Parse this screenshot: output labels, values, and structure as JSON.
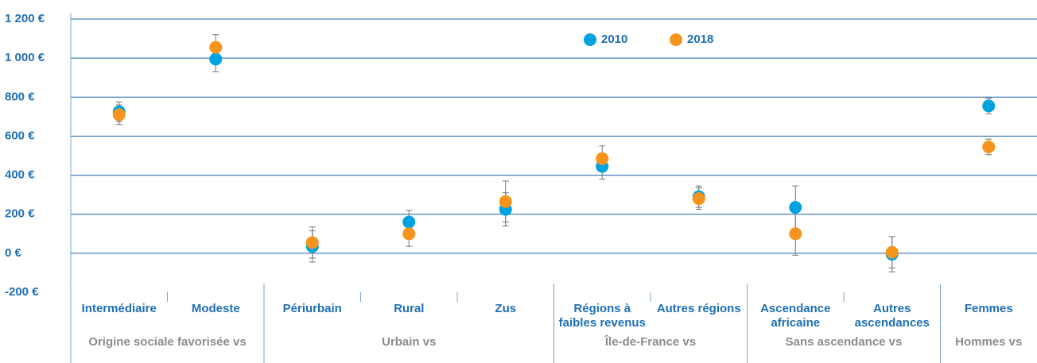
{
  "chart_data": {
    "type": "dot_errorbar",
    "categories": [
      "Intermédiaire",
      "Modeste",
      "Périurbain",
      "Rural",
      "Zus",
      "Régions à faibles revenus",
      "Autres régions",
      "Ascendance africaine",
      "Autres ascendances",
      "Femmes"
    ],
    "groups": [
      {
        "label": "Origine sociale favorisée vs",
        "size": 2
      },
      {
        "label": "Urbain vs",
        "size": 3
      },
      {
        "label": "Île-de-France vs",
        "size": 2
      },
      {
        "label": "Sans ascendance vs",
        "size": 2
      },
      {
        "label": "Hommes vs",
        "size": 1
      }
    ],
    "series": [
      {
        "name": "2010",
        "color": "#00a3e0",
        "values": [
          725,
          995,
          35,
          160,
          225,
          445,
          290,
          235,
          -5,
          755
        ],
        "errors": [
          50,
          65,
          80,
          60,
          85,
          65,
          55,
          110,
          90,
          40
        ]
      },
      {
        "name": "2018",
        "color": "#f7941d",
        "values": [
          710,
          1055,
          55,
          100,
          265,
          485,
          280,
          100,
          5,
          545
        ],
        "errors": [
          50,
          65,
          80,
          65,
          105,
          65,
          55,
          110,
          80,
          40
        ]
      }
    ],
    "ylim": [
      -200,
      1200
    ],
    "yticks": [
      {
        "value": -200,
        "label": "-200 €"
      },
      {
        "value": 0,
        "label": "0 €"
      },
      {
        "value": 200,
        "label": "200 €"
      },
      {
        "value": 400,
        "label": "400 €"
      },
      {
        "value": 600,
        "label": "600 €"
      },
      {
        "value": 800,
        "label": "800 €"
      },
      {
        "value": 1000,
        "label": "1 000 €"
      },
      {
        "value": 1200,
        "label": "1 200 €"
      }
    ],
    "grid": true,
    "legend": "top"
  }
}
